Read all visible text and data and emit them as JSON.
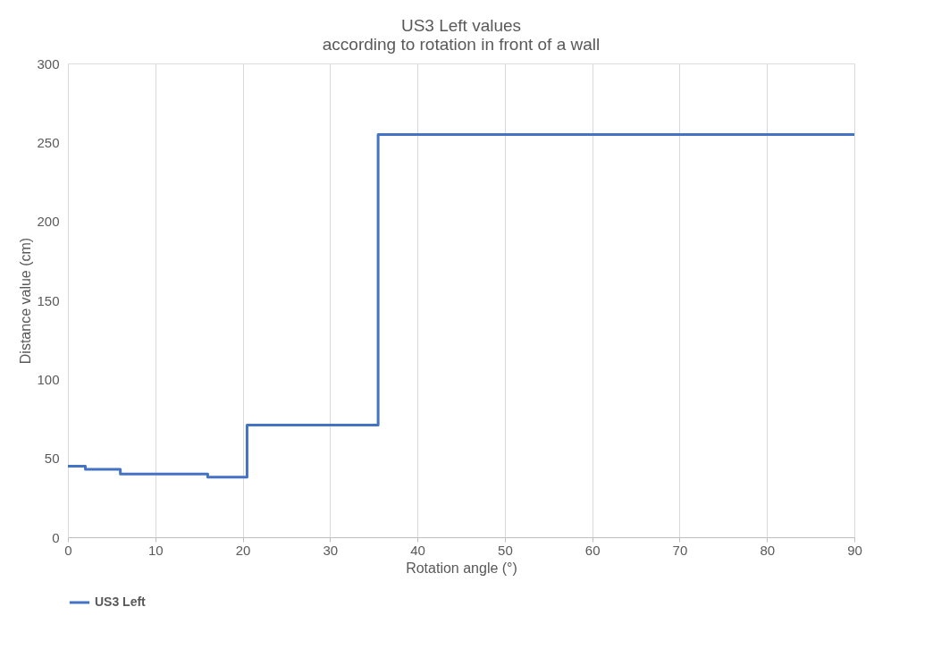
{
  "chart_data": {
    "type": "step",
    "title": "US3 Left values",
    "subtitle": "according to rotation in front of a wall",
    "xlabel": "Rotation angle (°)",
    "ylabel": "Distance value (cm)",
    "series": [
      {
        "name": "US3 Left",
        "color": "#4472c4",
        "x": [
          0,
          2,
          6,
          16,
          20.5,
          35.5,
          90
        ],
        "values": [
          45,
          43,
          40,
          38,
          71,
          255,
          255
        ]
      }
    ],
    "xlim": [
      0,
      90
    ],
    "xticks": [
      0,
      10,
      20,
      30,
      40,
      50,
      60,
      70,
      80,
      90
    ],
    "ylim": [
      0,
      300
    ],
    "yticks": [
      0,
      50,
      100,
      150,
      200,
      250,
      300
    ],
    "grid": "x",
    "legend": "bottom",
    "marker": "none",
    "line_style": "solid"
  }
}
